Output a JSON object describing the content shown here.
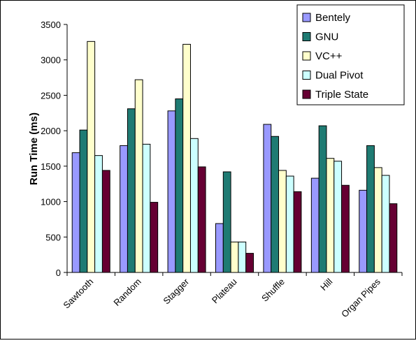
{
  "chart_data": {
    "type": "bar",
    "title": "",
    "xlabel": "",
    "ylabel": "Run Time (ms)",
    "ylim": [
      0,
      3500
    ],
    "yticks": [
      0,
      500,
      1000,
      1500,
      2000,
      2500,
      3000,
      3500
    ],
    "grid": false,
    "legend_position": "top-right",
    "categories": [
      "Sawtooth",
      "Random",
      "Stagger",
      "Plateau",
      "Shuffle",
      "Hill",
      "Organ Pipes"
    ],
    "series": [
      {
        "name": "Bentely",
        "color": "#9999ff",
        "values": [
          1690,
          1790,
          2280,
          690,
          2090,
          1330,
          1160
        ]
      },
      {
        "name": "GNU",
        "color": "#1f7b73",
        "values": [
          2010,
          2310,
          2450,
          1420,
          1920,
          2070,
          1790
        ]
      },
      {
        "name": "VC++",
        "color": "#ffffcc",
        "values": [
          3260,
          2720,
          3220,
          430,
          1440,
          1610,
          1480
        ]
      },
      {
        "name": "Dual Pivot",
        "color": "#ccffff",
        "values": [
          1650,
          1810,
          1890,
          430,
          1360,
          1570,
          1370
        ]
      },
      {
        "name": "Triple State",
        "color": "#660033",
        "values": [
          1440,
          990,
          1490,
          270,
          1140,
          1230,
          970
        ]
      }
    ]
  }
}
